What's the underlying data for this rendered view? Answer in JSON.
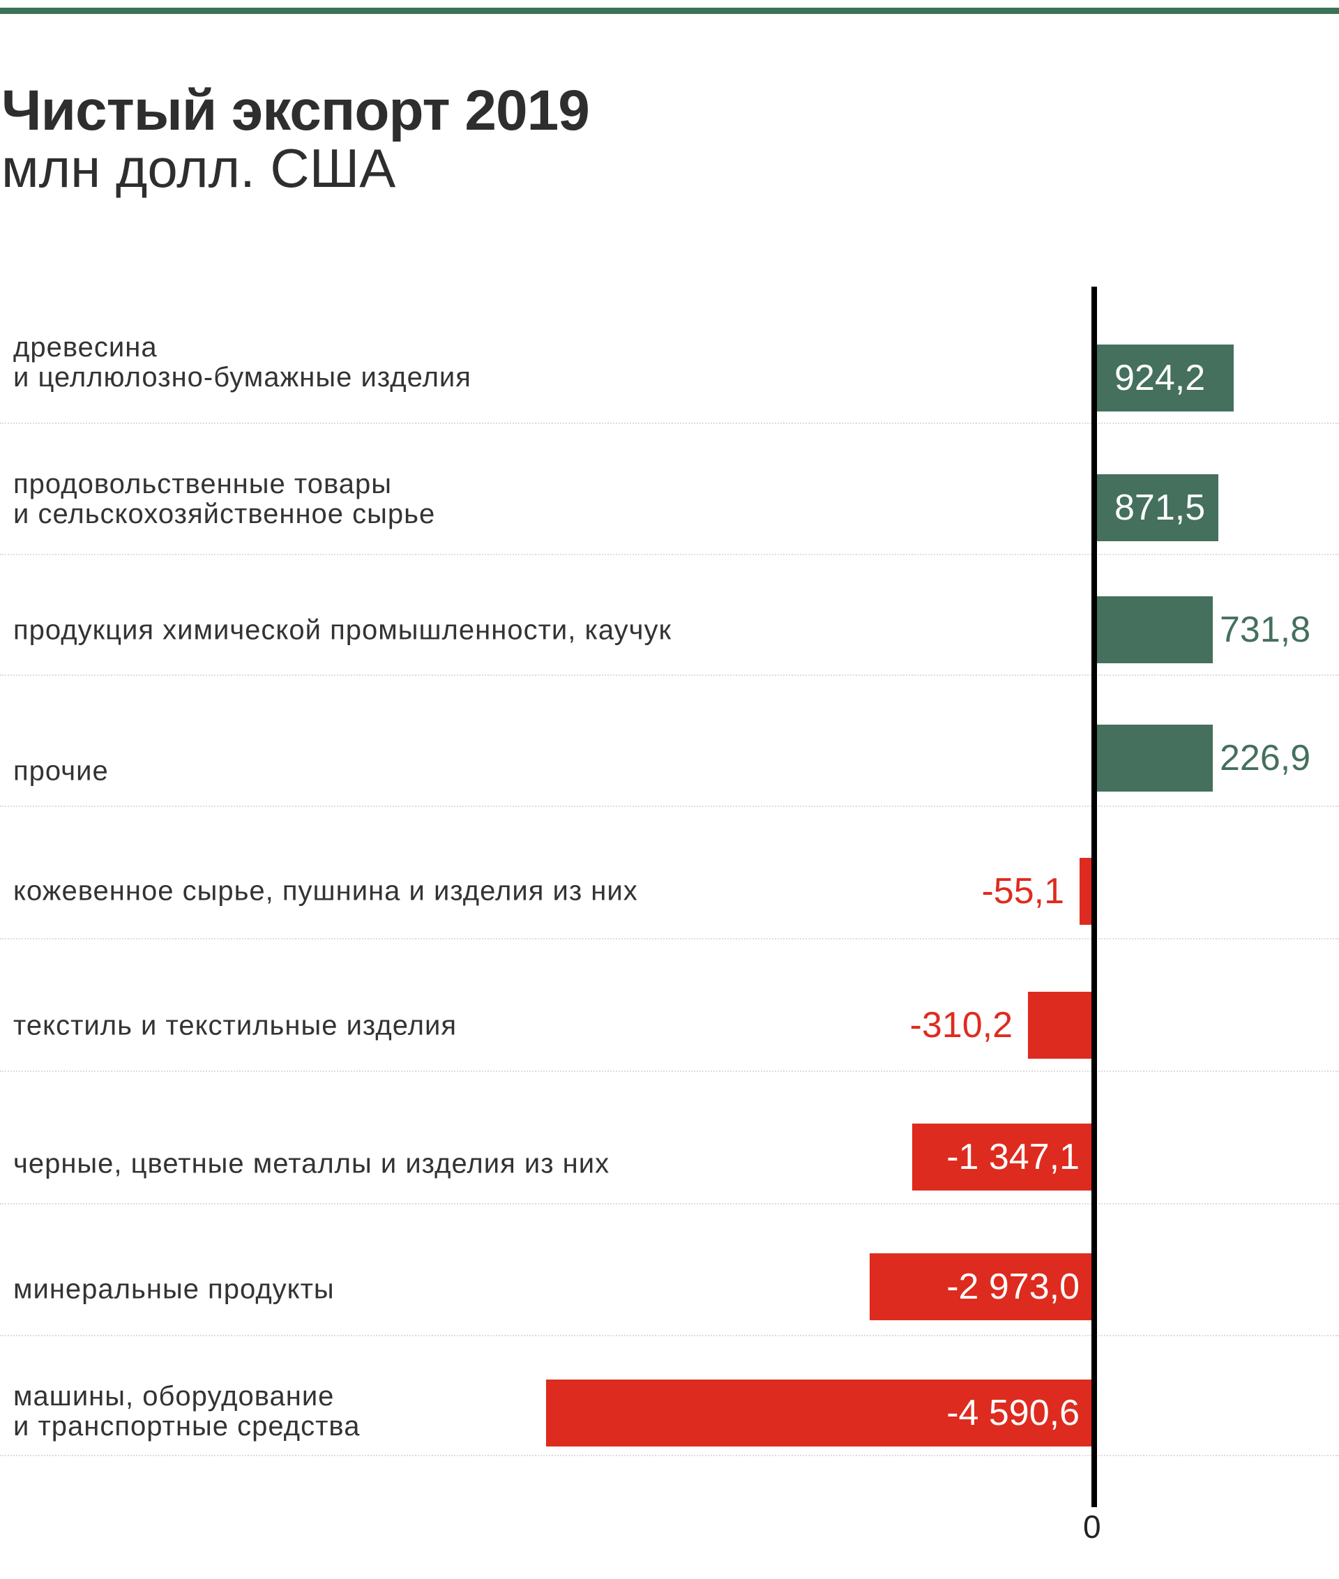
{
  "colors": {
    "positive": "#44705d",
    "negative": "#de2b1f",
    "accent": "#3b7358"
  },
  "chart_data": {
    "type": "bar",
    "orientation": "horizontal",
    "title": "Чистый экспорт 2019",
    "subtitle": "млн долл. США",
    "axis_zero_label": "0",
    "categories": [
      "древесина\nи целлюлозно-бумажные изделия",
      "продовольственные товары\nи сельскохозяйственное сырье",
      "продукция химической промышленности, каучук",
      "прочие",
      "кожевенное сырье, пушнина и изделия из них",
      "текстиль и текстильные изделия",
      "черные, цветные металлы и изделия из них",
      "минеральные продукты",
      "машины, оборудование\nи транспортные средства"
    ],
    "values": [
      924.2,
      871.5,
      731.8,
      226.9,
      -55.1,
      -310.2,
      -1347.1,
      -2973.0,
      -4590.6
    ],
    "value_labels": [
      "924,2",
      "871,5",
      "731,8",
      "226,9",
      "-55,1",
      "-310,2",
      "-1 347,1",
      "-2 973,0",
      "-4 590,6"
    ]
  }
}
